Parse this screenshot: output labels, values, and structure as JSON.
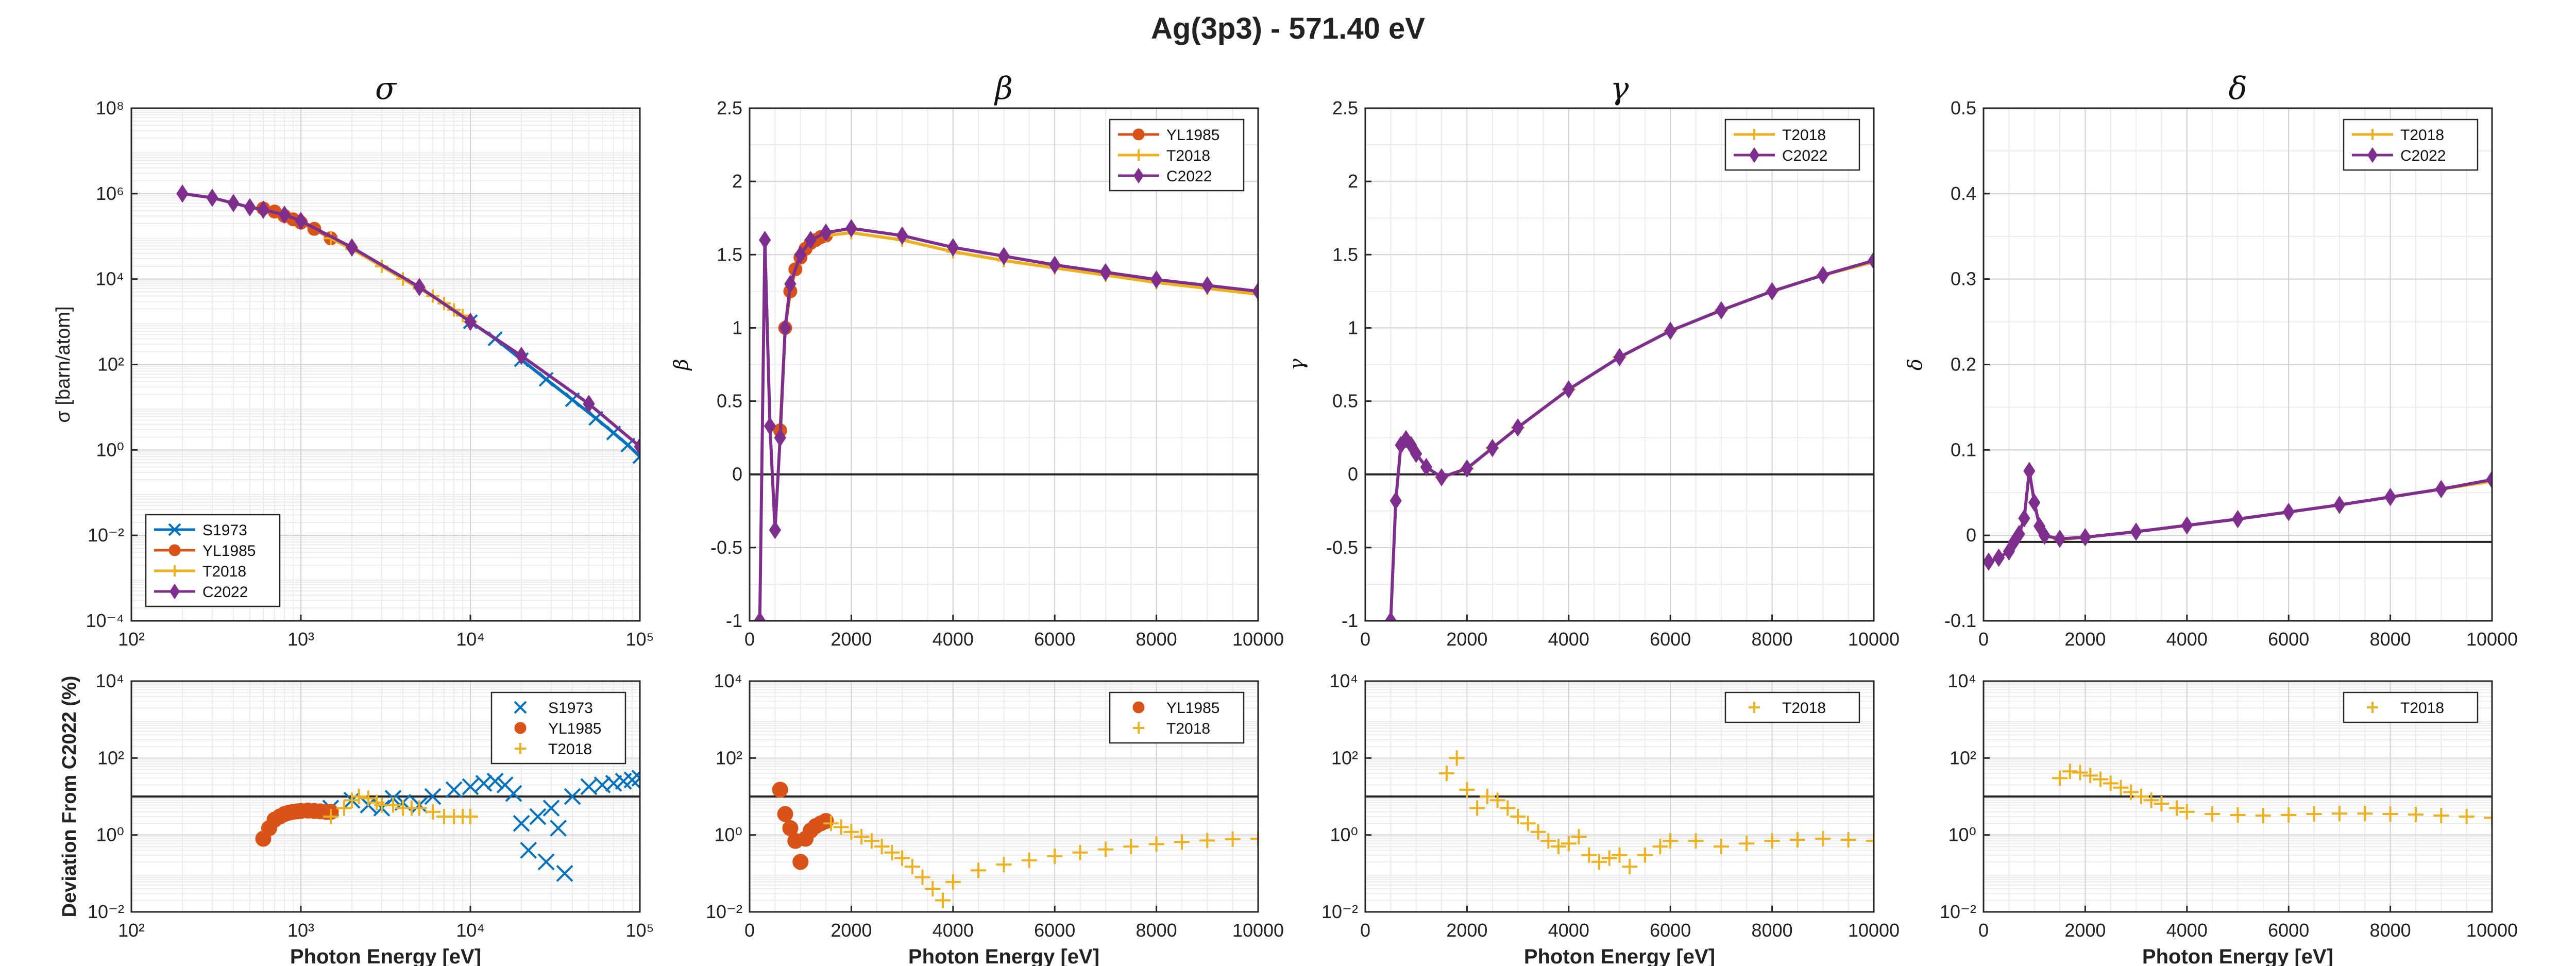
{
  "figure": {
    "suptitle": "Ag(3p3) - 571.40 eV"
  },
  "colors": {
    "S1973": "#0072BD",
    "YL1985": "#D95319",
    "T2018": "#EDB120",
    "C2022": "#7E2F8E"
  },
  "chart_data": [
    {
      "id": "sigma-top",
      "type": "line",
      "title": "σ",
      "ylabel": "σ [barn/atom]",
      "xlabel": "",
      "xscale": "log",
      "yscale": "log",
      "xlim": [
        100,
        100000
      ],
      "ylim": [
        0.0001,
        100000000
      ],
      "xticklabels": [
        "10²",
        "10³",
        "10⁴",
        "10⁵"
      ],
      "yticklabels": [
        "10⁻⁴",
        "10⁻²",
        "10⁰",
        "10²",
        "10⁴",
        "10⁶",
        "10⁸"
      ],
      "grid": true,
      "legend": "bottom-left",
      "series": [
        {
          "name": "S1973",
          "marker": "x",
          "x": [
            10000,
            14000,
            20000,
            28000,
            40000,
            55000,
            70000,
            85000,
            100000
          ],
          "y": [
            1000,
            400,
            130,
            45,
            15,
            5.5,
            2.5,
            1.3,
            0.7
          ]
        },
        {
          "name": "YL1985",
          "marker": "o",
          "x": [
            600,
            700,
            800,
            900,
            1000,
            1200,
            1500
          ],
          "y": [
            450000,
            380000,
            300000,
            250000,
            210000,
            150000,
            90000
          ]
        },
        {
          "name": "T2018",
          "marker": "+",
          "x": [
            1500,
            2000,
            3000,
            4000,
            5000,
            6000,
            7000,
            8000,
            9000,
            10000
          ],
          "y": [
            90000,
            50000,
            20000,
            10000,
            6000,
            4000,
            2700,
            1900,
            1400,
            1000
          ]
        },
        {
          "name": "C2022",
          "marker": "d",
          "x": [
            200,
            300,
            400,
            500,
            600,
            800,
            1000,
            2000,
            5000,
            10000,
            20000,
            50000,
            100000
          ],
          "y": [
            1000000,
            800000,
            600000,
            480000,
            420000,
            320000,
            230000,
            55000,
            6500,
            1000,
            160,
            12,
            1.2
          ]
        }
      ]
    },
    {
      "id": "beta-top",
      "type": "line",
      "title": "β",
      "ylabel": "β",
      "xlabel": "",
      "xscale": "linear",
      "yscale": "linear",
      "xlim": [
        0,
        10000
      ],
      "ylim": [
        -1,
        2.5
      ],
      "xticklabels": [
        "0",
        "2000",
        "4000",
        "6000",
        "8000",
        "10000"
      ],
      "yticklabels": [
        "-1",
        "-0.5",
        "0",
        "0.5",
        "1",
        "1.5",
        "2",
        "2.5"
      ],
      "grid": true,
      "legend": "top-right",
      "series": [
        {
          "name": "YL1985",
          "marker": "o",
          "x": [
            600,
            700,
            800,
            900,
            1000,
            1100,
            1200,
            1300,
            1400,
            1500
          ],
          "y": [
            0.3,
            1.0,
            1.25,
            1.4,
            1.48,
            1.54,
            1.58,
            1.6,
            1.62,
            1.63
          ]
        },
        {
          "name": "T2018",
          "marker": "+",
          "x": [
            1500,
            2000,
            3000,
            4000,
            5000,
            6000,
            7000,
            8000,
            9000,
            10000
          ],
          "y": [
            1.63,
            1.65,
            1.6,
            1.52,
            1.46,
            1.41,
            1.36,
            1.31,
            1.27,
            1.23
          ]
        },
        {
          "name": "C2022",
          "marker": "d",
          "x": [
            200,
            300,
            400,
            500,
            600,
            700,
            800,
            1000,
            1200,
            1500,
            2000,
            3000,
            4000,
            5000,
            6000,
            7000,
            8000,
            9000,
            10000
          ],
          "y": [
            -1,
            1.6,
            0.33,
            -0.38,
            0.25,
            1.0,
            1.3,
            1.5,
            1.6,
            1.65,
            1.68,
            1.63,
            1.55,
            1.49,
            1.43,
            1.38,
            1.33,
            1.29,
            1.25
          ]
        }
      ]
    },
    {
      "id": "gamma-top",
      "type": "line",
      "title": "γ",
      "ylabel": "γ",
      "xlabel": "",
      "xscale": "linear",
      "yscale": "linear",
      "xlim": [
        0,
        10000
      ],
      "ylim": [
        -1,
        2.5
      ],
      "xticklabels": [
        "0",
        "2000",
        "4000",
        "6000",
        "8000",
        "10000"
      ],
      "yticklabels": [
        "-1",
        "-0.5",
        "0",
        "0.5",
        "1",
        "1.5",
        "2",
        "2.5"
      ],
      "grid": true,
      "legend": "top-right",
      "series": [
        {
          "name": "T2018",
          "marker": "+",
          "x": [
            1500,
            2000,
            2500,
            3000,
            4000,
            5000,
            6000,
            7000,
            8000,
            9000,
            10000
          ],
          "y": [
            -0.02,
            0.04,
            0.18,
            0.32,
            0.58,
            0.8,
            0.98,
            1.12,
            1.25,
            1.36,
            1.45
          ]
        },
        {
          "name": "C2022",
          "marker": "d",
          "x": [
            500,
            600,
            700,
            800,
            900,
            1000,
            1200,
            1500,
            2000,
            2500,
            3000,
            4000,
            5000,
            6000,
            7000,
            8000,
            9000,
            10000
          ],
          "y": [
            -1,
            -0.18,
            0.2,
            0.24,
            0.2,
            0.14,
            0.05,
            -0.02,
            0.04,
            0.18,
            0.32,
            0.58,
            0.8,
            0.98,
            1.12,
            1.25,
            1.36,
            1.46
          ]
        }
      ]
    },
    {
      "id": "delta-top",
      "type": "line",
      "title": "δ",
      "ylabel": "δ",
      "xlabel": "",
      "xscale": "linear",
      "yscale": "linear",
      "xlim": [
        0,
        10000
      ],
      "ylim": [
        -0.1,
        0.55
      ],
      "xticklabels": [
        "0",
        "2000",
        "4000",
        "6000",
        "8000",
        "10000"
      ],
      "yticklabels": [
        "-0.1",
        "0",
        "0.1",
        "0.2",
        "0.3",
        "0.4",
        "0.5"
      ],
      "grid": true,
      "legend": "top-right",
      "series": [
        {
          "name": "T2018",
          "marker": "+",
          "x": [
            1500,
            2000,
            3000,
            4000,
            5000,
            6000,
            7000,
            8000,
            9000,
            10000
          ],
          "y": [
            0.003,
            0.006,
            0.013,
            0.021,
            0.029,
            0.038,
            0.047,
            0.057,
            0.067,
            0.077
          ]
        },
        {
          "name": "C2022",
          "marker": "d",
          "x": [
            100,
            300,
            500,
            600,
            700,
            800,
            900,
            1000,
            1100,
            1200,
            1500,
            2000,
            3000,
            4000,
            5000,
            6000,
            7000,
            8000,
            9000,
            10000
          ],
          "y": [
            -0.025,
            -0.02,
            -0.012,
            0,
            0.01,
            0.03,
            0.09,
            0.05,
            0.02,
            0.008,
            0.004,
            0.006,
            0.013,
            0.021,
            0.029,
            0.038,
            0.047,
            0.057,
            0.067,
            0.079
          ]
        }
      ]
    },
    {
      "id": "sigma-dev",
      "type": "scatter",
      "title": "",
      "ylabel": "Deviation From C2022 (%)",
      "xlabel": "Photon Energy [eV]",
      "xscale": "log",
      "yscale": "log",
      "xlim": [
        100,
        100000
      ],
      "ylim": [
        0.01,
        10000
      ],
      "xticklabels": [
        "10²",
        "10³",
        "10⁴",
        "10⁵"
      ],
      "yticklabels": [
        "10⁻²",
        "10⁰",
        "10²",
        "10⁴"
      ],
      "refline": 10,
      "grid": true,
      "legend": "top-right",
      "series": [
        {
          "name": "S1973",
          "marker": "x",
          "x": [
            1500,
            2000,
            2500,
            3000,
            3500,
            4000,
            5000,
            6000,
            8000,
            10000,
            12000,
            14000,
            16000,
            18000,
            20000,
            22000,
            25000,
            28000,
            30000,
            33000,
            36000,
            40000,
            50000,
            60000,
            70000,
            80000,
            90000,
            100000
          ],
          "y": [
            5,
            8,
            6,
            5,
            9,
            7,
            6,
            10,
            15,
            18,
            22,
            25,
            20,
            12,
            2,
            0.4,
            3,
            0.2,
            5,
            1.5,
            0.1,
            10,
            18,
            20,
            22,
            25,
            27,
            30
          ]
        },
        {
          "name": "YL1985",
          "marker": "o",
          "x": [
            600,
            650,
            700,
            750,
            800,
            850,
            900,
            950,
            1000,
            1100,
            1200,
            1300,
            1400,
            1500
          ],
          "y": [
            0.8,
            1.5,
            2.5,
            3,
            3.5,
            3.8,
            4,
            4.1,
            4.2,
            4.3,
            4.2,
            4.1,
            4,
            4
          ]
        },
        {
          "name": "T2018",
          "marker": "+",
          "x": [
            1500,
            1800,
            2000,
            2200,
            2500,
            2800,
            3000,
            3500,
            4000,
            4500,
            5000,
            6000,
            7000,
            8000,
            9000,
            10000
          ],
          "y": [
            3,
            5,
            8,
            10,
            9,
            7,
            6,
            6,
            5,
            5,
            5,
            4,
            3,
            3,
            3,
            3
          ]
        }
      ]
    },
    {
      "id": "beta-dev",
      "type": "scatter",
      "title": "",
      "ylabel": "",
      "xlabel": "Photon Energy [eV]",
      "xscale": "linear",
      "yscale": "log",
      "xlim": [
        0,
        10000
      ],
      "ylim": [
        0.01,
        10000
      ],
      "xticklabels": [
        "0",
        "2000",
        "4000",
        "6000",
        "8000",
        "10000"
      ],
      "yticklabels": [
        "10⁻²",
        "10⁰",
        "10²",
        "10⁴"
      ],
      "refline": 10,
      "grid": true,
      "legend": "top-right",
      "series": [
        {
          "name": "YL1985",
          "marker": "o",
          "x": [
            600,
            700,
            800,
            900,
            1000,
            1100,
            1200,
            1300,
            1400,
            1500
          ],
          "y": [
            15,
            3.5,
            1.5,
            0.7,
            0.2,
            0.8,
            1.3,
            1.7,
            2,
            2.3
          ]
        },
        {
          "name": "T2018",
          "marker": "+",
          "x": [
            1600,
            1800,
            2000,
            2200,
            2400,
            2600,
            2800,
            3000,
            3200,
            3400,
            3600,
            3800,
            4000,
            4500,
            5000,
            5500,
            6000,
            6500,
            7000,
            7500,
            8000,
            8500,
            9000,
            9500,
            10000
          ],
          "y": [
            2,
            1.6,
            1.2,
            0.9,
            0.7,
            0.5,
            0.35,
            0.25,
            0.15,
            0.08,
            0.04,
            0.02,
            0.06,
            0.12,
            0.17,
            0.22,
            0.28,
            0.35,
            0.42,
            0.5,
            0.58,
            0.66,
            0.72,
            0.78,
            0.8
          ]
        }
      ]
    },
    {
      "id": "gamma-dev",
      "type": "scatter",
      "title": "",
      "ylabel": "",
      "xlabel": "Photon Energy [eV]",
      "xscale": "linear",
      "yscale": "log",
      "xlim": [
        0,
        10000
      ],
      "ylim": [
        0.01,
        10000
      ],
      "xticklabels": [
        "0",
        "2000",
        "4000",
        "6000",
        "8000",
        "10000"
      ],
      "yticklabels": [
        "10⁻²",
        "10⁰",
        "10²",
        "10⁴"
      ],
      "refline": 10,
      "grid": true,
      "legend": "top-right",
      "series": [
        {
          "name": "T2018",
          "marker": "+",
          "x": [
            1600,
            1800,
            2000,
            2200,
            2400,
            2600,
            2800,
            3000,
            3200,
            3400,
            3600,
            3800,
            4000,
            4200,
            4400,
            4600,
            4800,
            5000,
            5200,
            5500,
            5800,
            6000,
            6500,
            7000,
            7500,
            8000,
            8500,
            9000,
            9500,
            10000
          ],
          "y": [
            40,
            100,
            15,
            5,
            10,
            8,
            5,
            3,
            2,
            1.2,
            0.7,
            0.5,
            0.6,
            0.9,
            0.3,
            0.2,
            0.25,
            0.3,
            0.15,
            0.3,
            0.5,
            0.7,
            0.7,
            0.5,
            0.6,
            0.7,
            0.75,
            0.8,
            0.75,
            0.7
          ]
        }
      ]
    },
    {
      "id": "delta-dev",
      "type": "scatter",
      "title": "",
      "ylabel": "",
      "xlabel": "Photon Energy [eV]",
      "xscale": "linear",
      "yscale": "log",
      "xlim": [
        0,
        10000
      ],
      "ylim": [
        0.01,
        10000
      ],
      "xticklabels": [
        "0",
        "2000",
        "4000",
        "6000",
        "8000",
        "10000"
      ],
      "yticklabels": [
        "10⁻²",
        "10⁰",
        "10²",
        "10⁴"
      ],
      "refline": 10,
      "grid": true,
      "legend": "top-right",
      "series": [
        {
          "name": "T2018",
          "marker": "+",
          "x": [
            1500,
            1700,
            1900,
            2100,
            2300,
            2500,
            2700,
            2900,
            3100,
            3300,
            3500,
            3800,
            4000,
            4500,
            5000,
            5500,
            6000,
            6500,
            7000,
            7500,
            8000,
            8500,
            9000,
            9500,
            10000
          ],
          "y": [
            30,
            45,
            42,
            35,
            28,
            22,
            17,
            13,
            10,
            8,
            6.5,
            5,
            4,
            3.5,
            3.3,
            3.2,
            3.3,
            3.5,
            3.6,
            3.6,
            3.5,
            3.4,
            3.2,
            3,
            2.8
          ]
        }
      ]
    }
  ]
}
